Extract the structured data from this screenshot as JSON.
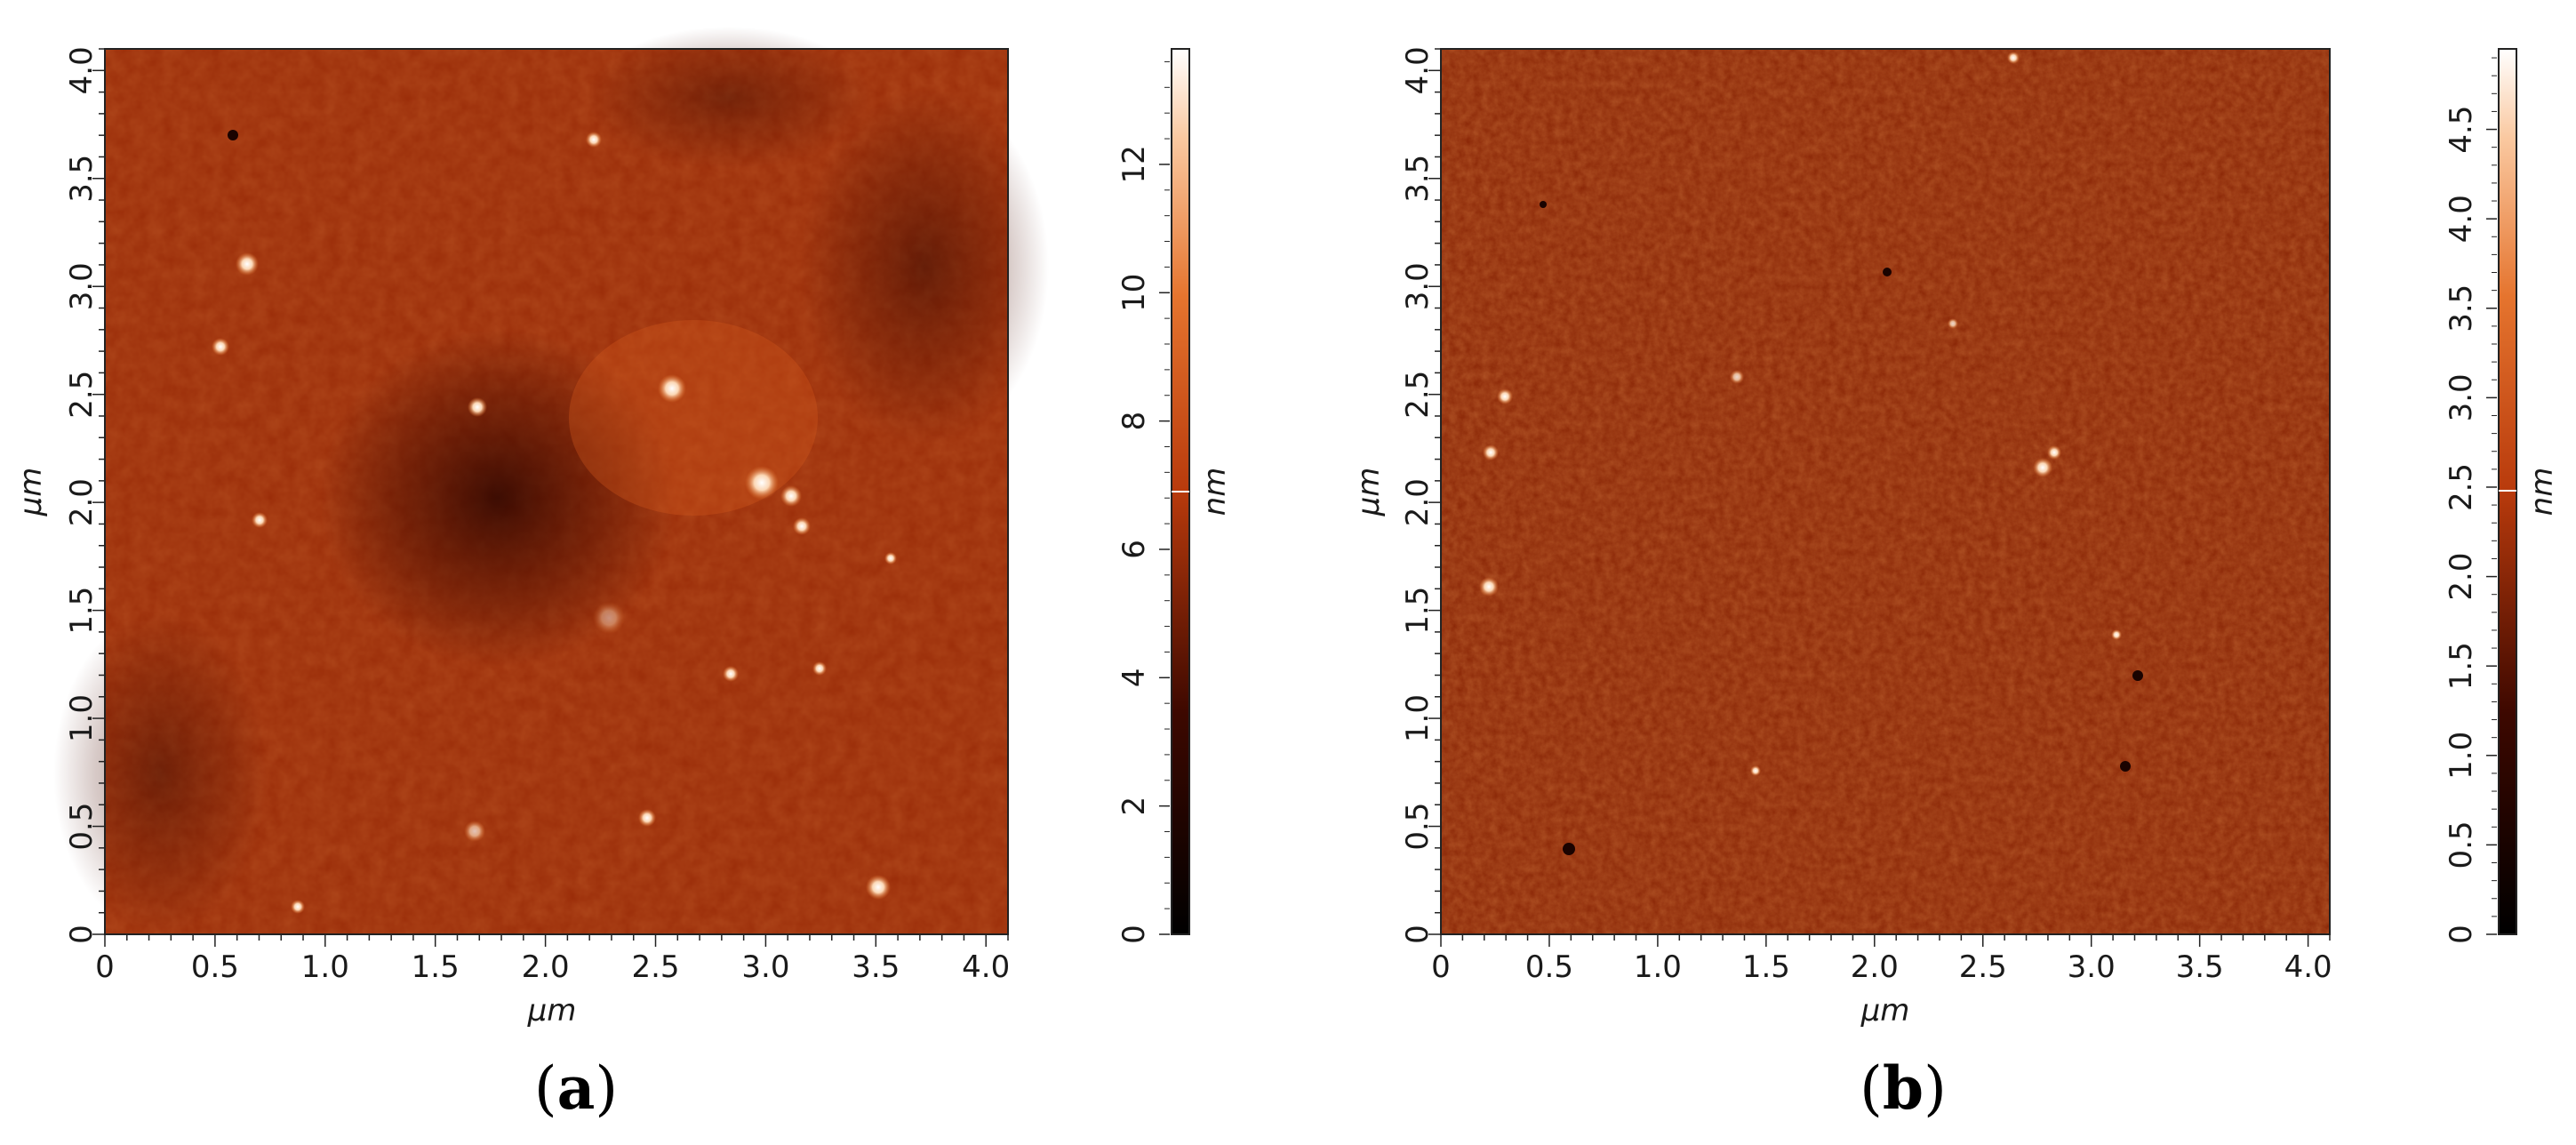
{
  "panels": [
    {
      "id": "a",
      "caption_open": "(",
      "caption_letter": "a",
      "caption_close": ")",
      "x_axis_label": "μm",
      "y_axis_label": "μm",
      "x_ticks": [
        "0",
        "0.5",
        "1.0",
        "1.5",
        "2.0",
        "2.5",
        "3.0",
        "3.5",
        "4.0"
      ],
      "y_ticks": [
        "0",
        "0.5",
        "1.0",
        "1.5",
        "2.0",
        "2.5",
        "3.0",
        "3.5",
        "4.0"
      ],
      "colorbar_unit": "nm",
      "colorbar_ticks": [
        "0",
        "2",
        "4",
        "6",
        "8",
        "10",
        "12"
      ],
      "colorbar_range": [
        0,
        13.8
      ],
      "colorbar_marker": 6.9,
      "colors": {
        "low": "#1a0300",
        "mid": "#b83a0c",
        "high": "#ffffff"
      }
    },
    {
      "id": "b",
      "caption_open": "(",
      "caption_letter": "b",
      "caption_close": ")",
      "x_axis_label": "μm",
      "y_axis_label": "μm",
      "x_ticks": [
        "0",
        "0.5",
        "1.0",
        "1.5",
        "2.0",
        "2.5",
        "3.0",
        "3.5",
        "4.0"
      ],
      "y_ticks": [
        "0",
        "0.5",
        "1.0",
        "1.5",
        "2.0",
        "2.5",
        "3.0",
        "3.5",
        "4.0"
      ],
      "colorbar_unit": "nm",
      "colorbar_ticks": [
        "0",
        "0.5",
        "1.0",
        "1.5",
        "2.0",
        "2.5",
        "3.0",
        "3.5",
        "4.0",
        "4.5"
      ],
      "colorbar_range": [
        0,
        4.95
      ],
      "colorbar_marker": 2.48,
      "colors": {
        "low": "#1a0300",
        "mid": "#b83a0c",
        "high": "#ffffff"
      }
    }
  ]
}
